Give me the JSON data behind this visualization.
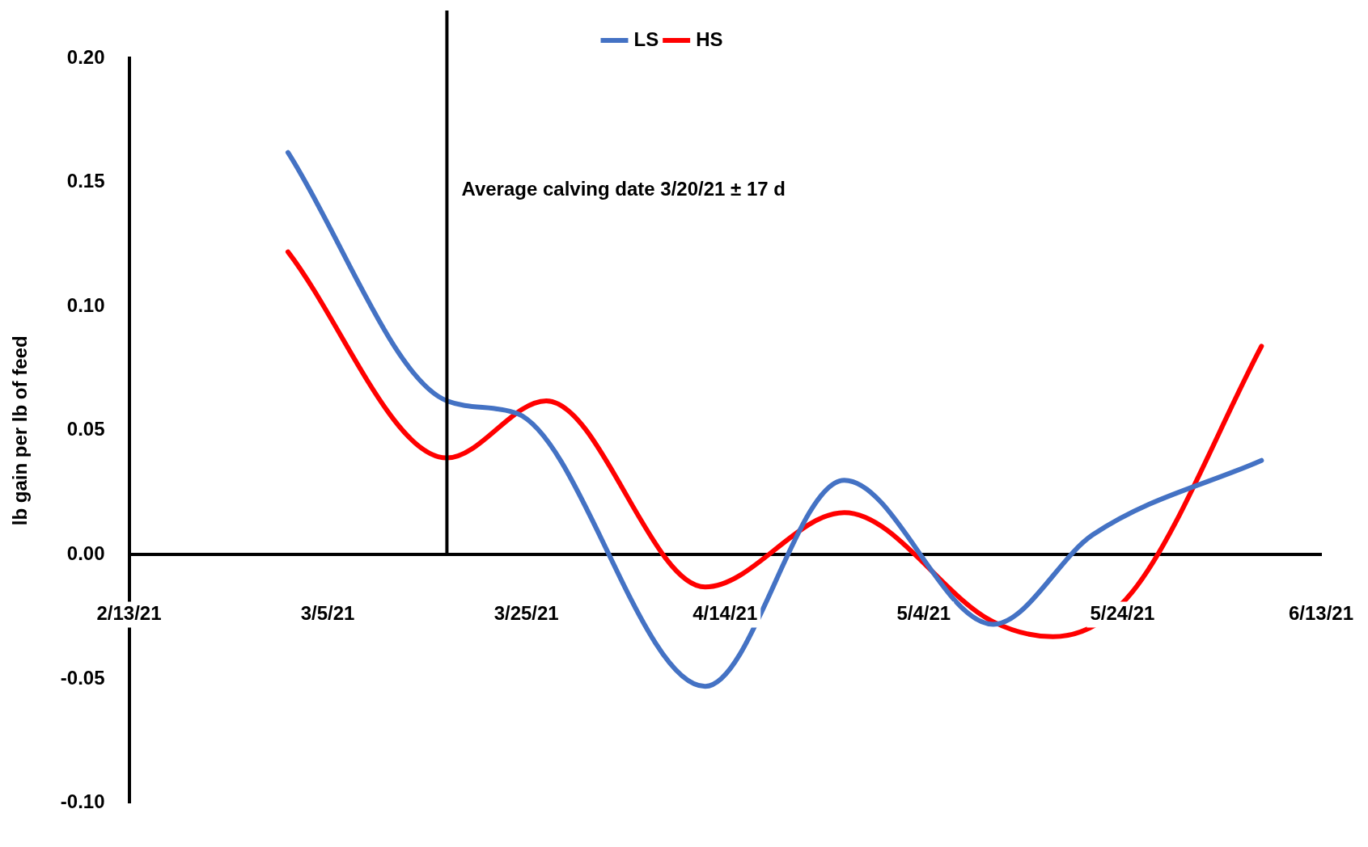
{
  "chart_data": {
    "type": "line",
    "ylabel": "lb gain per lb of feed",
    "legend": "top",
    "line_style": "solid",
    "marker": "none",
    "grid": false,
    "series": [
      {
        "name": "LS",
        "color": "#4472c4",
        "x": [
          "2021-03-01",
          "2021-03-17",
          "2021-03-24",
          "2021-04-12",
          "2021-04-26",
          "2021-05-11",
          "2021-05-21",
          "2021-06-07"
        ],
        "values": [
          0.162,
          0.062,
          0.057,
          -0.053,
          0.03,
          -0.028,
          0.008,
          0.038
        ]
      },
      {
        "name": "HS",
        "color": "#ff0000",
        "x": [
          "2021-03-01",
          "2021-03-17",
          "2021-03-27",
          "2021-04-12",
          "2021-04-26",
          "2021-05-11",
          "2021-05-17",
          "2021-05-25",
          "2021-06-07"
        ],
        "values": [
          0.122,
          0.039,
          0.062,
          -0.013,
          0.017,
          -0.027,
          -0.033,
          -0.015,
          0.084
        ]
      }
    ],
    "xlim": [
      "2021-02-13",
      "2021-06-13"
    ],
    "xticks": [
      {
        "value": "2021-02-13",
        "label": "2/13/21"
      },
      {
        "value": "2021-03-05",
        "label": "3/5/21"
      },
      {
        "value": "2021-03-25",
        "label": "3/25/21"
      },
      {
        "value": "2021-04-14",
        "label": "4/14/21"
      },
      {
        "value": "2021-05-04",
        "label": "5/4/21"
      },
      {
        "value": "2021-05-24",
        "label": "5/24/21"
      },
      {
        "value": "2021-06-13",
        "label": "6/13/21"
      }
    ],
    "ylim": [
      -0.1,
      0.2
    ],
    "yticks": [
      {
        "value": -0.1,
        "label": "-0.10"
      },
      {
        "value": -0.05,
        "label": "-0.05"
      },
      {
        "value": 0,
        "label": "0.00"
      },
      {
        "value": 0.05,
        "label": "0.05"
      },
      {
        "value": 0.1,
        "label": "0.10"
      },
      {
        "value": 0.15,
        "label": "0.15"
      },
      {
        "value": 0.2,
        "label": "0.20"
      }
    ],
    "ref_lines": [
      {
        "axis": "x",
        "value": "2021-03-17",
        "label": "Average calving date 3/20/21 ± 17 d",
        "color": "#000000"
      }
    ]
  }
}
